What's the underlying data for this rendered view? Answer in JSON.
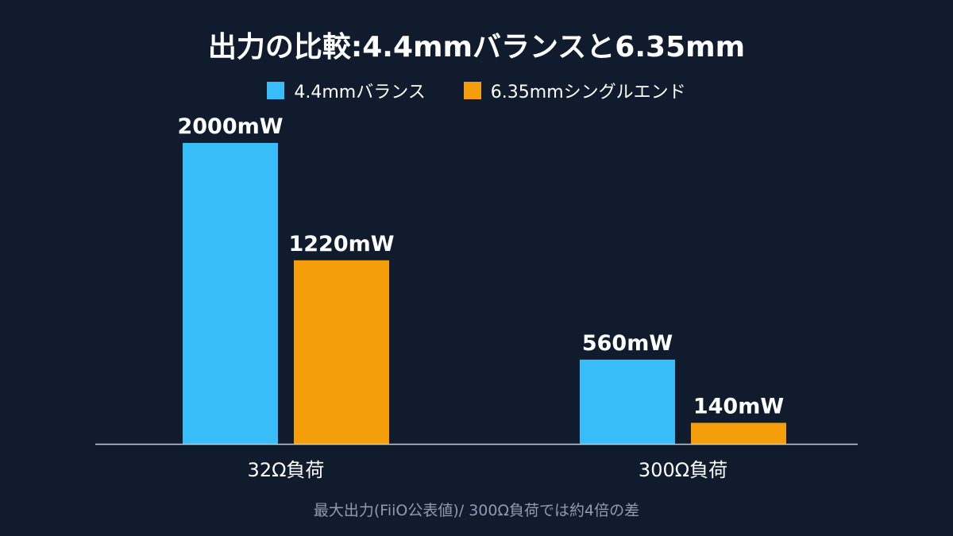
{
  "chart_data": {
    "type": "bar",
    "title": "出力の比較:4.4mmバランスと6.35mm",
    "note": "最大出力(FiiO公表値)/ 300Ω負荷では約4倍の差",
    "categories": [
      "32Ω負荷",
      "300Ω負荷"
    ],
    "series": [
      {
        "name": "4.4mmバランス",
        "color": "#38bdf8",
        "values": [
          2000,
          560
        ],
        "labels": [
          "2000mW",
          "560mW"
        ]
      },
      {
        "name": "6.35mmシングルエンド",
        "color": "#f59e0b",
        "values": [
          1220,
          140
        ],
        "labels": [
          "1220mW",
          "140mW"
        ]
      }
    ],
    "ylim": [
      0,
      2000
    ],
    "unit": "mW",
    "grid": false,
    "legend_position": "top-center"
  }
}
